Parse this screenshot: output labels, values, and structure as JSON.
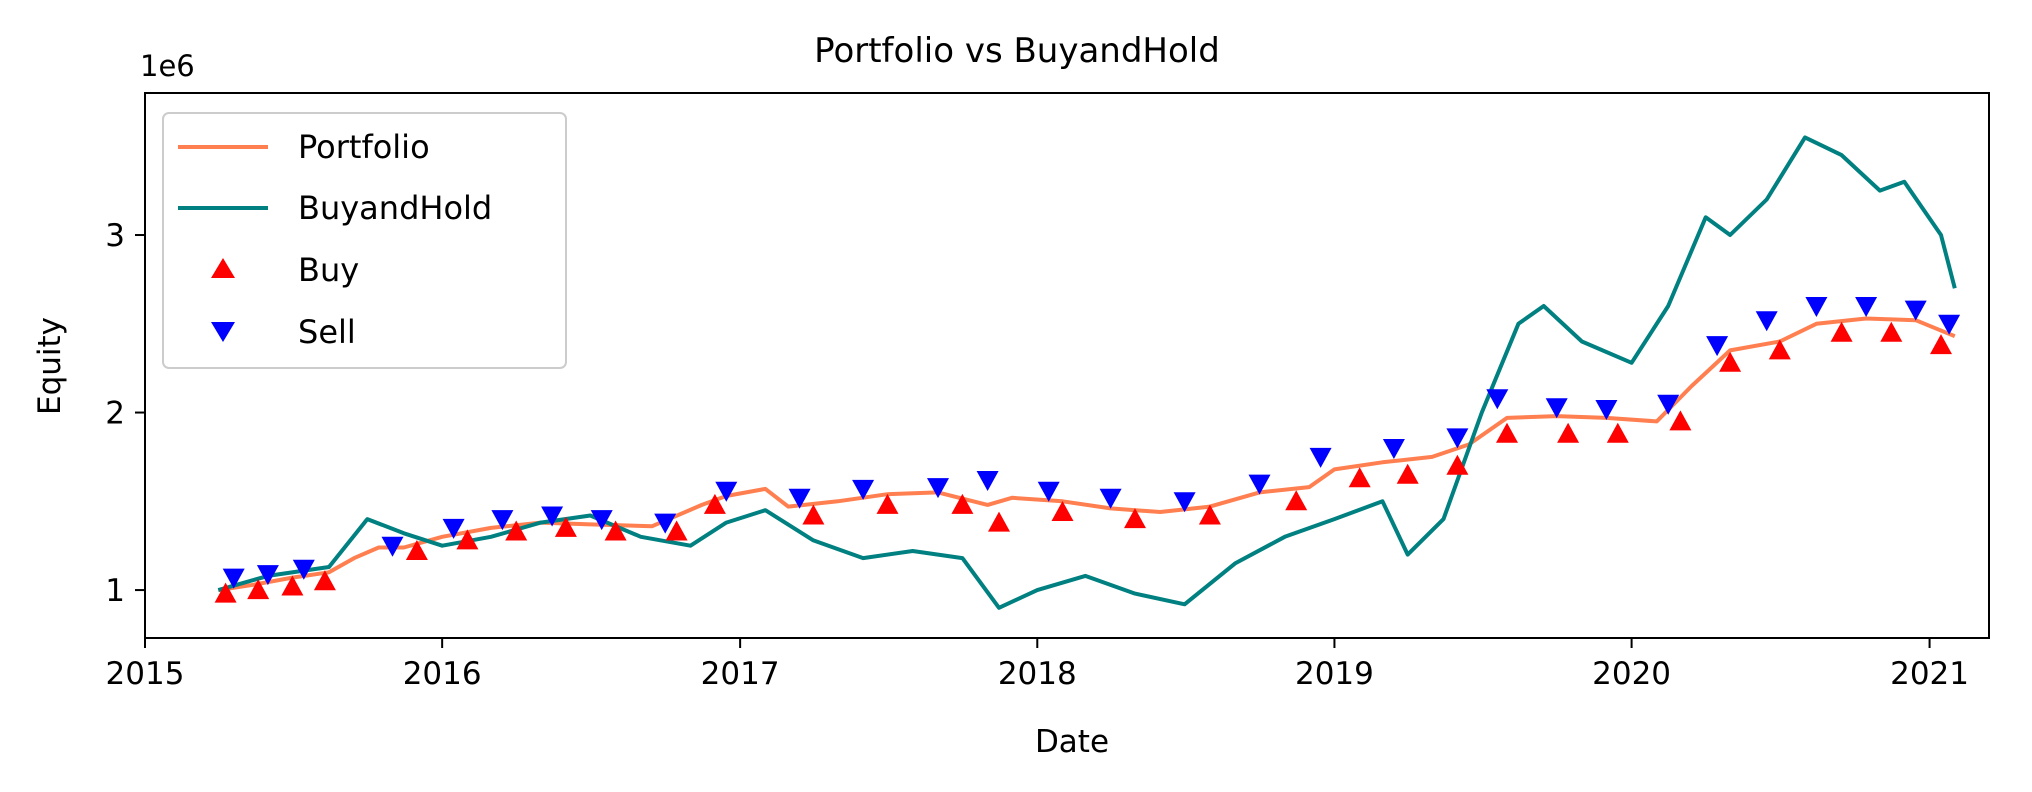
{
  "chart_data": {
    "type": "line",
    "title": "Portfolio vs BuyandHold",
    "xlabel": "Date",
    "ylabel": "Equity",
    "y_scale_label": "1e6",
    "xlim": [
      "2015-01-01",
      "2021-03-15"
    ],
    "ylim": [
      0.73,
      3.8
    ],
    "x_ticks": [
      "2015",
      "2016",
      "2017",
      "2018",
      "2019",
      "2020",
      "2021"
    ],
    "y_ticks": [
      1,
      2,
      3
    ],
    "y_tick_labels": [
      "1",
      "2",
      "3"
    ],
    "legend_position": "top-left",
    "grid": false,
    "series": [
      {
        "name": "Portfolio",
        "color": "#ff7f50",
        "points": [
          [
            "2015-04-01",
            1.0
          ],
          [
            "2015-05-15",
            1.03
          ],
          [
            "2015-07-01",
            1.07
          ],
          [
            "2015-08-15",
            1.1
          ],
          [
            "2015-09-15",
            1.18
          ],
          [
            "2015-10-15",
            1.24
          ],
          [
            "2015-11-15",
            1.24
          ],
          [
            "2016-01-01",
            1.3
          ],
          [
            "2016-03-01",
            1.35
          ],
          [
            "2016-05-01",
            1.38
          ],
          [
            "2016-07-01",
            1.37
          ],
          [
            "2016-09-15",
            1.36
          ],
          [
            "2016-11-15",
            1.48
          ],
          [
            "2016-12-15",
            1.53
          ],
          [
            "2017-02-01",
            1.57
          ],
          [
            "2017-03-01",
            1.47
          ],
          [
            "2017-05-01",
            1.5
          ],
          [
            "2017-07-01",
            1.54
          ],
          [
            "2017-09-01",
            1.55
          ],
          [
            "2017-11-01",
            1.48
          ],
          [
            "2017-12-01",
            1.52
          ],
          [
            "2018-02-01",
            1.5
          ],
          [
            "2018-04-01",
            1.46
          ],
          [
            "2018-06-01",
            1.44
          ],
          [
            "2018-08-01",
            1.47
          ],
          [
            "2018-10-01",
            1.55
          ],
          [
            "2018-12-01",
            1.58
          ],
          [
            "2019-01-01",
            1.68
          ],
          [
            "2019-03-01",
            1.72
          ],
          [
            "2019-05-01",
            1.75
          ],
          [
            "2019-06-15",
            1.82
          ],
          [
            "2019-08-01",
            1.97
          ],
          [
            "2019-10-01",
            1.98
          ],
          [
            "2019-12-01",
            1.97
          ],
          [
            "2020-02-01",
            1.95
          ],
          [
            "2020-03-15",
            2.15
          ],
          [
            "2020-05-01",
            2.35
          ],
          [
            "2020-07-01",
            2.4
          ],
          [
            "2020-08-15",
            2.5
          ],
          [
            "2020-10-15",
            2.53
          ],
          [
            "2020-12-15",
            2.52
          ],
          [
            "2021-02-01",
            2.43
          ]
        ]
      },
      {
        "name": "BuyandHold",
        "color": "#008080",
        "points": [
          [
            "2015-04-01",
            1.0
          ],
          [
            "2015-06-01",
            1.08
          ],
          [
            "2015-08-15",
            1.13
          ],
          [
            "2015-10-01",
            1.4
          ],
          [
            "2015-11-15",
            1.32
          ],
          [
            "2016-01-01",
            1.25
          ],
          [
            "2016-03-01",
            1.3
          ],
          [
            "2016-05-01",
            1.38
          ],
          [
            "2016-07-01",
            1.42
          ],
          [
            "2016-09-01",
            1.3
          ],
          [
            "2016-11-01",
            1.25
          ],
          [
            "2016-12-15",
            1.38
          ],
          [
            "2017-02-01",
            1.45
          ],
          [
            "2017-04-01",
            1.28
          ],
          [
            "2017-06-01",
            1.18
          ],
          [
            "2017-08-01",
            1.22
          ],
          [
            "2017-10-01",
            1.18
          ],
          [
            "2017-11-15",
            0.9
          ],
          [
            "2018-01-01",
            1.0
          ],
          [
            "2018-03-01",
            1.08
          ],
          [
            "2018-05-01",
            0.98
          ],
          [
            "2018-07-01",
            0.92
          ],
          [
            "2018-09-01",
            1.15
          ],
          [
            "2018-11-01",
            1.3
          ],
          [
            "2019-01-01",
            1.4
          ],
          [
            "2019-03-01",
            1.5
          ],
          [
            "2019-04-01",
            1.2
          ],
          [
            "2019-05-15",
            1.4
          ],
          [
            "2019-07-01",
            2.0
          ],
          [
            "2019-08-15",
            2.5
          ],
          [
            "2019-09-15",
            2.6
          ],
          [
            "2019-11-01",
            2.4
          ],
          [
            "2020-01-01",
            2.28
          ],
          [
            "2020-02-15",
            2.6
          ],
          [
            "2020-04-01",
            3.1
          ],
          [
            "2020-05-01",
            3.0
          ],
          [
            "2020-06-15",
            3.2
          ],
          [
            "2020-08-01",
            3.55
          ],
          [
            "2020-09-15",
            3.45
          ],
          [
            "2020-11-01",
            3.25
          ],
          [
            "2020-12-01",
            3.3
          ],
          [
            "2021-01-15",
            3.0
          ],
          [
            "2021-02-01",
            2.7
          ]
        ]
      }
    ],
    "markers": [
      {
        "name": "Buy",
        "shape": "triangle-up",
        "color": "#ff0000",
        "points": [
          [
            "2015-04-10",
            0.98
          ],
          [
            "2015-05-20",
            1.0
          ],
          [
            "2015-07-01",
            1.02
          ],
          [
            "2015-08-10",
            1.05
          ],
          [
            "2015-12-01",
            1.22
          ],
          [
            "2016-02-01",
            1.28
          ],
          [
            "2016-04-01",
            1.33
          ],
          [
            "2016-06-01",
            1.35
          ],
          [
            "2016-08-01",
            1.33
          ],
          [
            "2016-10-15",
            1.33
          ],
          [
            "2016-12-01",
            1.48
          ],
          [
            "2017-04-01",
            1.42
          ],
          [
            "2017-07-01",
            1.48
          ],
          [
            "2017-10-01",
            1.48
          ],
          [
            "2017-11-15",
            1.38
          ],
          [
            "2018-02-01",
            1.44
          ],
          [
            "2018-05-01",
            1.4
          ],
          [
            "2018-08-01",
            1.42
          ],
          [
            "2018-11-15",
            1.5
          ],
          [
            "2019-02-01",
            1.63
          ],
          [
            "2019-04-01",
            1.65
          ],
          [
            "2019-06-01",
            1.7
          ],
          [
            "2019-08-01",
            1.88
          ],
          [
            "2019-10-15",
            1.88
          ],
          [
            "2019-12-15",
            1.88
          ],
          [
            "2020-03-01",
            1.95
          ],
          [
            "2020-05-01",
            2.28
          ],
          [
            "2020-07-01",
            2.35
          ],
          [
            "2020-09-15",
            2.45
          ],
          [
            "2020-11-15",
            2.45
          ],
          [
            "2021-01-15",
            2.38
          ]
        ]
      },
      {
        "name": "Sell",
        "shape": "triangle-down",
        "color": "#0000ff",
        "points": [
          [
            "2015-04-20",
            1.07
          ],
          [
            "2015-06-01",
            1.09
          ],
          [
            "2015-07-15",
            1.12
          ],
          [
            "2015-11-01",
            1.25
          ],
          [
            "2016-01-15",
            1.35
          ],
          [
            "2016-03-15",
            1.4
          ],
          [
            "2016-05-15",
            1.42
          ],
          [
            "2016-07-15",
            1.4
          ],
          [
            "2016-10-01",
            1.38
          ],
          [
            "2016-12-15",
            1.56
          ],
          [
            "2017-03-15",
            1.52
          ],
          [
            "2017-06-01",
            1.57
          ],
          [
            "2017-09-01",
            1.58
          ],
          [
            "2017-11-01",
            1.62
          ],
          [
            "2018-01-15",
            1.56
          ],
          [
            "2018-04-01",
            1.52
          ],
          [
            "2018-07-01",
            1.5
          ],
          [
            "2018-10-01",
            1.6
          ],
          [
            "2018-12-15",
            1.75
          ],
          [
            "2019-03-15",
            1.8
          ],
          [
            "2019-06-01",
            1.86
          ],
          [
            "2019-07-20",
            2.08
          ],
          [
            "2019-10-01",
            2.03
          ],
          [
            "2019-12-01",
            2.02
          ],
          [
            "2020-02-15",
            2.05
          ],
          [
            "2020-04-15",
            2.38
          ],
          [
            "2020-06-15",
            2.52
          ],
          [
            "2020-08-15",
            2.6
          ],
          [
            "2020-10-15",
            2.6
          ],
          [
            "2020-12-15",
            2.58
          ],
          [
            "2021-01-25",
            2.5
          ]
        ]
      }
    ]
  }
}
